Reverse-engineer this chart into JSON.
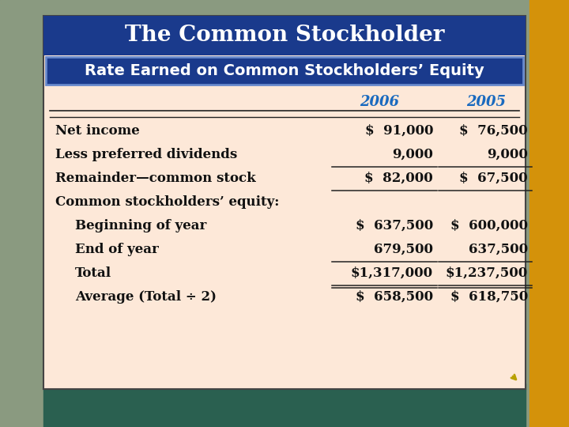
{
  "title": "The Common Stockholder",
  "subtitle": "Rate Earned on Common Stockholders’ Equity",
  "title_bg": "#1a3a8c",
  "subtitle_bg": "#1a3a8c",
  "table_bg": "#fde8d8",
  "outer_bg_top": "#c8b060",
  "outer_bg_right": "#d4901a",
  "header_color": "#1a6abf",
  "text_color": "#111111",
  "col_headers": [
    "2006",
    "2005"
  ],
  "rows": [
    {
      "label": "Net income",
      "indent": 0,
      "val2006": "$  91,000",
      "val2005": "$  76,500",
      "line_above": true,
      "line_below": false,
      "double_below": false
    },
    {
      "label": "Less preferred dividends",
      "indent": 0,
      "val2006": "9,000",
      "val2005": "9,000",
      "line_above": false,
      "line_below": true,
      "double_below": false
    },
    {
      "label": "Remainder—common stock",
      "indent": 0,
      "val2006": "$  82,000",
      "val2005": "$  67,500",
      "line_above": false,
      "line_below": true,
      "double_below": false
    },
    {
      "label": "Common stockholders’ equity:",
      "indent": 0,
      "val2006": "",
      "val2005": "",
      "line_above": false,
      "line_below": false,
      "double_below": false
    },
    {
      "label": "Beginning of year",
      "indent": 1,
      "val2006": "$  637,500",
      "val2005": "$  600,000",
      "line_above": false,
      "line_below": false,
      "double_below": false
    },
    {
      "label": "End of year",
      "indent": 1,
      "val2006": "679,500",
      "val2005": "637,500",
      "line_above": false,
      "line_below": true,
      "double_below": false
    },
    {
      "label": "Total",
      "indent": 1,
      "val2006": "$1,317,000",
      "val2005": "$1,237,500",
      "line_above": false,
      "line_below": true,
      "double_below": true
    },
    {
      "label": "Average (Total ÷ 2)",
      "indent": 1,
      "val2006": "$  658,500",
      "val2005": "$  618,750",
      "line_above": false,
      "line_below": false,
      "double_below": false
    }
  ],
  "title_fontsize": 20,
  "subtitle_fontsize": 14,
  "table_fontsize": 12,
  "header_fontsize": 13
}
